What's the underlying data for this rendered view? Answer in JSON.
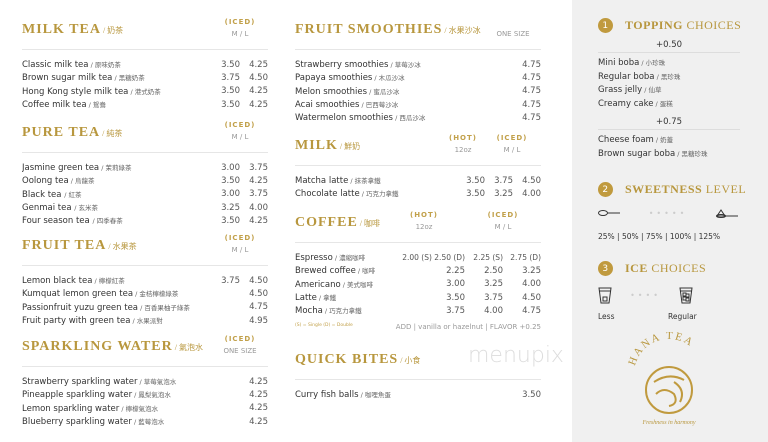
{
  "sections": [
    {
      "id": "milk-tea",
      "title": "MILK TEA",
      "zh": "奶茶",
      "groups": [
        {
          "top": "(ICED)",
          "sub": "M  /  L",
          "w": 56
        }
      ],
      "cols": [
        28,
        28
      ],
      "items": [
        {
          "name": "Classic milk tea",
          "zh": "原味奶茶",
          "prices": [
            "3.50",
            "4.25"
          ]
        },
        {
          "name": "Brown sugar milk tea",
          "zh": "黑糖奶茶",
          "prices": [
            "3.75",
            "4.50"
          ]
        },
        {
          "name": "Hong Kong style milk tea",
          "zh": "港式奶茶",
          "prices": [
            "3.50",
            "4.25"
          ]
        },
        {
          "name": "Coffee milk tea",
          "zh": "鴛鴦",
          "prices": [
            "3.50",
            "4.25"
          ]
        }
      ]
    },
    {
      "id": "pure-tea",
      "title": "PURE TEA",
      "zh": "純茶",
      "groups": [
        {
          "top": "(ICED)",
          "sub": "M  /  L",
          "w": 56
        }
      ],
      "cols": [
        28,
        28
      ],
      "items": [
        {
          "name": "Jasmine green tea",
          "zh": "茉莉綠茶",
          "prices": [
            "3.00",
            "3.75"
          ]
        },
        {
          "name": "Oolong tea",
          "zh": "烏龍茶",
          "prices": [
            "3.50",
            "4.25"
          ]
        },
        {
          "name": "Black tea ",
          "zh": "紅茶",
          "prices": [
            "3.00",
            "3.75"
          ]
        },
        {
          "name": "Genmai tea ",
          "zh": "玄米茶",
          "prices": [
            "3.25",
            "4.00"
          ]
        },
        {
          "name": "Four season tea ",
          "zh": "四季春茶",
          "prices": [
            "3.50",
            "4.25"
          ]
        }
      ]
    },
    {
      "id": "fruit-tea",
      "title": "FRUIT TEA",
      "zh": "水果茶",
      "groups": [
        {
          "top": "(ICED)",
          "sub": "M  /  L",
          "w": 56
        }
      ],
      "cols": [
        28,
        28
      ],
      "items": [
        {
          "name": "Lemon black tea",
          "zh": "檸檬紅茶",
          "prices": [
            "3.75",
            "4.50"
          ]
        },
        {
          "name": "Kumquat lemon green tea",
          "zh": "金桔檸檬綠茶",
          "prices": [
            "",
            "4.50"
          ]
        },
        {
          "name": "Passionfruit yuzu green tea",
          "zh": "百香果柚子綠茶",
          "prices": [
            "",
            "4.75"
          ]
        },
        {
          "name": "Fruit party with green tea",
          "zh": "水果派對",
          "prices": [
            "",
            "4.95"
          ]
        }
      ]
    },
    {
      "id": "sparkling-water",
      "title": "SPARKLING WATER",
      "zh": "氣泡水",
      "groups": [
        {
          "top": "(ICED)",
          "sub": "ONE SIZE",
          "w": 56
        }
      ],
      "cols": [
        28
      ],
      "items": [
        {
          "name": "Strawberry sparkling water",
          "zh": "草莓氣泡水",
          "prices": [
            "4.25"
          ]
        },
        {
          "name": "Pineapple sparkling water",
          "zh": "鳳梨氣泡水",
          "prices": [
            "4.25"
          ]
        },
        {
          "name": "Lemon sparkling water",
          "zh": "檸檬氣泡水",
          "prices": [
            "4.25"
          ]
        },
        {
          "name": "Blueberry sparkling water",
          "zh": "藍莓泡水",
          "prices": [
            "4.25"
          ]
        }
      ]
    },
    {
      "id": "fruit-smoothies",
      "title": "FRUIT SMOOTHIES",
      "zh": "水果沙冰",
      "groups": [
        {
          "top": "",
          "sub": "ONE SIZE",
          "w": 56
        }
      ],
      "cols": [
        28
      ],
      "items": [
        {
          "name": "Strawberry smoothies",
          "zh": "草莓沙冰",
          "prices": [
            "4.75"
          ]
        },
        {
          "name": "Papaya smoothies",
          "zh": "木瓜沙冰",
          "prices": [
            "4.75"
          ]
        },
        {
          "name": "Melon smoothies",
          "zh": "蜜瓜沙冰",
          "prices": [
            "4.75"
          ]
        },
        {
          "name": "Acai smoothies",
          "zh": "巴西莓沙冰",
          "prices": [
            "4.75"
          ]
        },
        {
          "name": "Watermelon smoothies",
          "zh": "西瓜沙冰",
          "prices": [
            "4.75"
          ]
        }
      ]
    },
    {
      "id": "milk",
      "title": "MILK",
      "zh": "鮮奶",
      "groups": [
        {
          "top": "(HOT)",
          "sub": "12oz",
          "w": 40
        },
        {
          "top": "(ICED)",
          "sub": "M  /  L",
          "w": 58
        }
      ],
      "cols": [
        58,
        28,
        28
      ],
      "items": [
        {
          "name": "Matcha latte",
          "zh": "抹茶拿鐵",
          "prices": [
            "3.50",
            "3.75",
            "4.50"
          ]
        },
        {
          "name": "Chocolate latte",
          "zh": "巧克力拿鐵",
          "prices": [
            "3.50",
            "3.25",
            "4.00"
          ]
        }
      ]
    },
    {
      "id": "coffee",
      "title": "COFFEE",
      "zh": "咖啡",
      "groups": [
        {
          "top": "(HOT)",
          "sub": "12oz",
          "w": 40
        },
        {
          "top": "(ICED)",
          "sub": "M  /  L",
          "w": 58
        }
      ],
      "cols": [
        58,
        28,
        28
      ],
      "items": [
        {
          "name": "Espresso",
          "zh": "濃縮咖啡",
          "prices": [
            "2.00 (S) 2.50 (D)",
            "2.25 (S)",
            "2.75 (D)"
          ]
        },
        {
          "name": "Brewed coffee",
          "zh": "咖啡",
          "prices": [
            "2.25",
            "2.50",
            "3.25"
          ]
        },
        {
          "name": "Americano",
          "zh": "美式咖啡",
          "prices": [
            "3.00",
            "3.25",
            "4.00"
          ]
        },
        {
          "name": "Latte",
          "zh": "拿鐵",
          "prices": [
            "3.50",
            "3.75",
            "4.50"
          ]
        },
        {
          "name": "Mocha",
          "zh": "巧克力拿鐵",
          "prices": [
            "3.75",
            "4.00",
            "4.75"
          ]
        }
      ],
      "legend": "(S) = Single  (D) = Double",
      "addon": "ADD | vanilla or hazelnut | FLAVOR +0.25"
    },
    {
      "id": "quick-bites",
      "title": "QUICK BITES",
      "zh": "小食",
      "groups": [],
      "cols": [
        28
      ],
      "items": [
        {
          "name": "Curry fish balls",
          "zh": "咖哩魚蛋",
          "prices": [
            "3.50"
          ]
        }
      ]
    }
  ],
  "toppings": {
    "number": "1",
    "title_a": "TOPPING",
    "title_b": "CHOICES",
    "tiers": [
      {
        "price": "+0.50",
        "items": [
          {
            "name": "Mini boba",
            "zh": "小珍珠"
          },
          {
            "name": "Regular boba",
            "zh": "黑珍珠"
          },
          {
            "name": "Grass jelly",
            "zh": "仙草"
          },
          {
            "name": "Creamy cake",
            "zh": "蛋糕"
          }
        ]
      },
      {
        "price": "+0.75",
        "items": [
          {
            "name": "Cheese foam",
            "zh": "奶蓋"
          },
          {
            "name": "Brown sugar boba",
            "zh": "黑糖珍珠"
          }
        ]
      }
    ]
  },
  "sweetness": {
    "number": "2",
    "title_a": "SWEETNESS",
    "title_b": "LEVEL",
    "levels": "25%  |  50%  |  75%  |  100%  |  125%"
  },
  "ice": {
    "number": "3",
    "title_a": "ICE",
    "title_b": "CHOICES",
    "less": "Less",
    "regular": "Regular"
  },
  "logo": {
    "name": "HANA TEA",
    "tagline": "Freshness in harmony"
  },
  "watermark": "menupix",
  "colors": {
    "gold": "#b8973e",
    "panel": "#f0f0f0"
  }
}
